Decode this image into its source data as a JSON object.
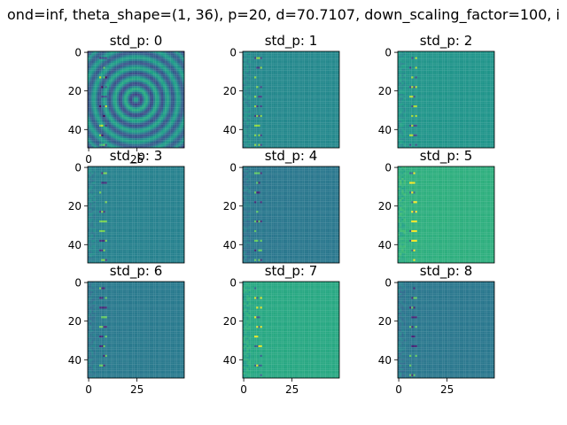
{
  "figure": {
    "suptitle": "ond=inf, theta_shape=(1, 36), p=20, d=70.7107, down_scaling_factor=100, i"
  },
  "colors": {
    "viridis": [
      "#440154",
      "#482878",
      "#3e4a89",
      "#31688e",
      "#26828e",
      "#1f9e89",
      "#35b779",
      "#6ece58",
      "#b5de2b",
      "#fde725"
    ]
  },
  "chart_data": [
    {
      "type": "heatmap",
      "title": "std_p: 0",
      "base_level": 0.45,
      "rings": true,
      "y_ticks": [
        0,
        20,
        40
      ],
      "x_ticks": [
        0,
        25
      ],
      "xlim": [
        0,
        49
      ],
      "ylim": [
        49,
        0
      ]
    },
    {
      "type": "heatmap",
      "title": "std_p: 1",
      "base_level": 0.47,
      "y_ticks": [
        0,
        20,
        40
      ],
      "x_ticks": [],
      "xlim": [
        0,
        49
      ],
      "ylim": [
        49,
        0
      ]
    },
    {
      "type": "heatmap",
      "title": "std_p: 2",
      "base_level": 0.52,
      "y_ticks": [
        0,
        20,
        40
      ],
      "x_ticks": [],
      "xlim": [
        0,
        49
      ],
      "ylim": [
        49,
        0
      ]
    },
    {
      "type": "heatmap",
      "title": "std_p: 3",
      "base_level": 0.44,
      "y_ticks": [
        0,
        20,
        40
      ],
      "x_ticks": [],
      "xlim": [
        0,
        49
      ],
      "ylim": [
        49,
        0
      ]
    },
    {
      "type": "heatmap",
      "title": "std_p: 4",
      "base_level": 0.4,
      "y_ticks": [
        0,
        20,
        40
      ],
      "x_ticks": [],
      "xlim": [
        0,
        49
      ],
      "ylim": [
        49,
        0
      ]
    },
    {
      "type": "heatmap",
      "title": "std_p: 5",
      "base_level": 0.63,
      "y_ticks": [
        0,
        20,
        40
      ],
      "x_ticks": [],
      "xlim": [
        0,
        49
      ],
      "ylim": [
        49,
        0
      ]
    },
    {
      "type": "heatmap",
      "title": "std_p: 6",
      "base_level": 0.41,
      "y_ticks": [
        0,
        20,
        40
      ],
      "x_ticks": [
        0,
        25
      ],
      "xlim": [
        0,
        49
      ],
      "ylim": [
        49,
        0
      ]
    },
    {
      "type": "heatmap",
      "title": "std_p: 7",
      "base_level": 0.6,
      "y_ticks": [
        0,
        20,
        40
      ],
      "x_ticks": [
        0,
        25
      ],
      "xlim": [
        0,
        49
      ],
      "ylim": [
        49,
        0
      ]
    },
    {
      "type": "heatmap",
      "title": "std_p: 8",
      "base_level": 0.4,
      "y_ticks": [
        0,
        20,
        40
      ],
      "x_ticks": [
        0,
        25
      ],
      "xlim": [
        0,
        49
      ],
      "ylim": [
        49,
        0
      ]
    }
  ]
}
